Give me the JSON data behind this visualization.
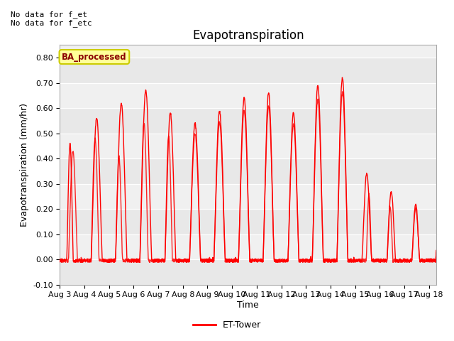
{
  "title": "Evapotranspiration",
  "xlabel": "Time",
  "ylabel": "Evapotranspiration (mm/hr)",
  "ylim": [
    -0.1,
    0.85
  ],
  "yticks": [
    -0.1,
    0.0,
    0.1,
    0.2,
    0.3,
    0.4,
    0.5,
    0.6,
    0.7,
    0.8
  ],
  "xlim_days": [
    3.0,
    18.3
  ],
  "xtick_labels": [
    "Aug 3",
    "Aug 4",
    "Aug 5",
    "Aug 6",
    "Aug 7",
    "Aug 8",
    "Aug 9",
    "Aug 10",
    "Aug 11",
    "Aug 12",
    "Aug 13",
    "Aug 14",
    "Aug 15",
    "Aug 16",
    "Aug 17",
    "Aug 18"
  ],
  "xtick_positions": [
    3,
    4,
    5,
    6,
    7,
    8,
    9,
    10,
    11,
    12,
    13,
    14,
    15,
    16,
    17,
    18
  ],
  "line_color": "#ff0000",
  "line_width": 1.0,
  "fig_bg_color": "#ffffff",
  "plot_bg_color": "#f0f0f0",
  "band_color_dark": "#e0e0e0",
  "annotation_text": "No data for f_et\nNo data for f_etc",
  "box_label": "BA_processed",
  "box_text_color": "#8B0000",
  "box_face_color": "#ffff99",
  "box_edge_color": "#cccc00",
  "legend_label": "ET-Tower",
  "title_fontsize": 12,
  "label_fontsize": 9,
  "tick_fontsize": 8,
  "annot_fontsize": 8
}
